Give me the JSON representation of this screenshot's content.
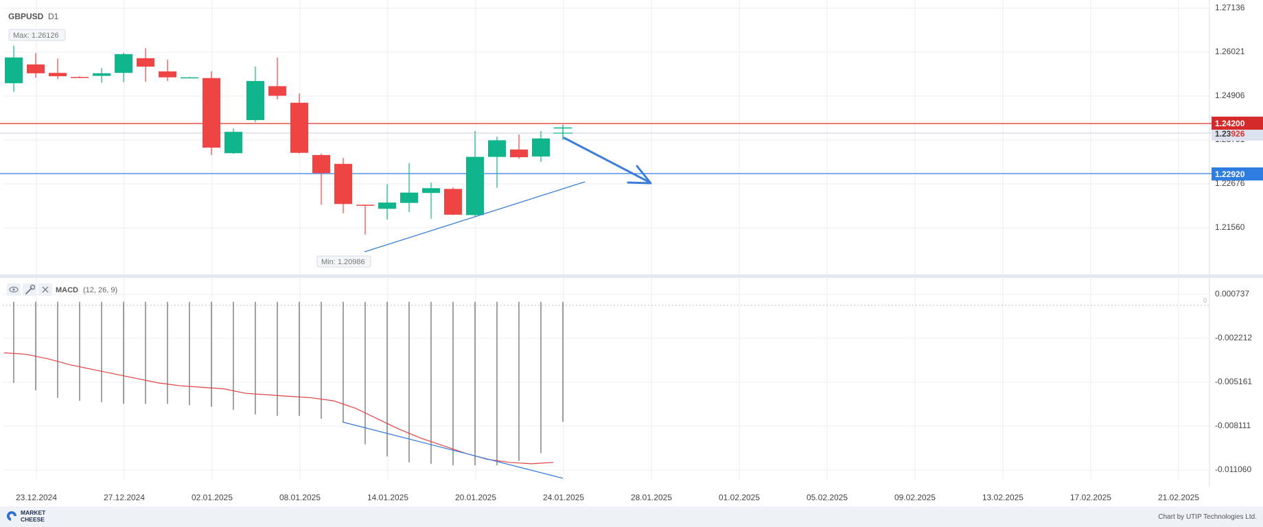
{
  "header": {
    "symbol": "GBPUSD",
    "timeframe": "D1"
  },
  "price_panel": {
    "max_label": "Max: 1.26126",
    "min_label": "Min: 1.20986",
    "y_ticks": [
      "1.27136",
      "1.26021",
      "1.24906",
      "1.23791",
      "1.22676",
      "1.21560"
    ],
    "level_red": {
      "label": "1.24200",
      "value": 1.242,
      "color": "#e02f2f"
    },
    "level_blue": {
      "label": "1.22920",
      "value": 1.2292,
      "color": "#2f7de0"
    },
    "current_price": {
      "label_prefix": "1.23",
      "label_suffix": "926",
      "value": 1.23926
    }
  },
  "macd_panel": {
    "indicator": "MACD",
    "params": "(12, 26, 9)",
    "zero_label": "0",
    "y_ticks": [
      "0.000737",
      "-0.002212",
      "-0.005161",
      "-0.008111",
      "-0.011060"
    ]
  },
  "x_axis": {
    "labels": [
      "23.12.2024",
      "27.12.2024",
      "02.01.2025",
      "08.01.2025",
      "14.01.2025",
      "20.01.2025",
      "24.01.2025",
      "28.01.2025",
      "01.02.2025",
      "05.02.2025",
      "09.02.2025",
      "13.02.2025",
      "17.02.2025",
      "21.02.2025"
    ]
  },
  "footer": {
    "logo_line1": "MARKET",
    "logo_line2": "CHEESE",
    "credit": "Chart by UTIP Technologies Ltd."
  },
  "colors": {
    "bull": "#11b58c",
    "bear": "#ee4444",
    "signal": "#e04040",
    "grid": "#e8ecf6",
    "axis_text": "#444444"
  },
  "chart_data": {
    "type": "candlestick",
    "symbol": "GBPUSD",
    "timeframe": "D1",
    "ylim": [
      1.2,
      1.27136
    ],
    "candles": [
      {
        "o": 1.251,
        "h": 1.2612,
        "l": 1.2487,
        "c": 1.258
      },
      {
        "o": 1.2561,
        "h": 1.2592,
        "l": 1.2525,
        "c": 1.2537
      },
      {
        "o": 1.2538,
        "h": 1.2577,
        "l": 1.2521,
        "c": 1.2529
      },
      {
        "o": 1.2527,
        "h": 1.2529,
        "l": 1.2524,
        "c": 1.2526
      },
      {
        "o": 1.253,
        "h": 1.2551,
        "l": 1.2511,
        "c": 1.2537
      },
      {
        "o": 1.2538,
        "h": 1.2593,
        "l": 1.2513,
        "c": 1.2589
      },
      {
        "o": 1.2578,
        "h": 1.2605,
        "l": 1.2514,
        "c": 1.2555
      },
      {
        "o": 1.2542,
        "h": 1.2574,
        "l": 1.2516,
        "c": 1.2526
      },
      {
        "o": 1.2526,
        "h": 1.2527,
        "l": 1.2524,
        "c": 1.2526
      },
      {
        "o": 1.2524,
        "h": 1.2542,
        "l": 1.2315,
        "c": 1.2335
      },
      {
        "o": 1.232,
        "h": 1.2387,
        "l": 1.2318,
        "c": 1.2378
      },
      {
        "o": 1.241,
        "h": 1.2555,
        "l": 1.2404,
        "c": 1.2516
      },
      {
        "o": 1.2502,
        "h": 1.258,
        "l": 1.2466,
        "c": 1.2476
      },
      {
        "o": 1.2457,
        "h": 1.2482,
        "l": 1.2319,
        "c": 1.2321
      },
      {
        "o": 1.2315,
        "h": 1.2319,
        "l": 1.218,
        "c": 1.2266
      },
      {
        "o": 1.2291,
        "h": 1.2307,
        "l": 1.2157,
        "c": 1.2182
      },
      {
        "o": 1.218,
        "h": 1.218,
        "l": 1.2099,
        "c": 1.2178
      },
      {
        "o": 1.2169,
        "h": 1.2236,
        "l": 1.214,
        "c": 1.2186
      },
      {
        "o": 1.2185,
        "h": 1.2293,
        "l": 1.216,
        "c": 1.2213
      },
      {
        "o": 1.2212,
        "h": 1.224,
        "l": 1.2142,
        "c": 1.2225
      },
      {
        "o": 1.2223,
        "h": 1.2227,
        "l": 1.2152,
        "c": 1.2153
      },
      {
        "o": 1.2152,
        "h": 1.238,
        "l": 1.2148,
        "c": 1.231
      },
      {
        "o": 1.231,
        "h": 1.2365,
        "l": 1.2226,
        "c": 1.2355
      },
      {
        "o": 1.233,
        "h": 1.2371,
        "l": 1.2305,
        "c": 1.2309
      },
      {
        "o": 1.2311,
        "h": 1.238,
        "l": 1.2296,
        "c": 1.236
      },
      {
        "o": 1.2387,
        "h": 1.2398,
        "l": 1.2362,
        "c": 1.239
      }
    ],
    "macd": {
      "params": [
        12,
        26,
        9
      ],
      "ylim": [
        -0.0119,
        0.0015
      ],
      "histogram": [
        -0.0054,
        -0.0059,
        -0.0064,
        -0.0066,
        -0.0067,
        -0.0068,
        -0.0068,
        -0.0068,
        -0.0069,
        -0.007,
        -0.0072,
        -0.0075,
        -0.0076,
        -0.0076,
        -0.0078,
        -0.008,
        -0.0095,
        -0.0103,
        -0.0107,
        -0.0108,
        -0.0109,
        -0.0109,
        -0.0109,
        -0.0106,
        -0.0101,
        -0.008
      ],
      "signal": [
        -0.0034,
        -0.0035,
        -0.0038,
        -0.0042,
        -0.0045,
        -0.0048,
        -0.0051,
        -0.0054,
        -0.0056,
        -0.0057,
        -0.0058,
        -0.0061,
        -0.0062,
        -0.0063,
        -0.0064,
        -0.0066,
        -0.0071,
        -0.0078,
        -0.0085,
        -0.0091,
        -0.0096,
        -0.0101,
        -0.0105,
        -0.0107,
        -0.0108,
        -0.0107
      ]
    }
  }
}
